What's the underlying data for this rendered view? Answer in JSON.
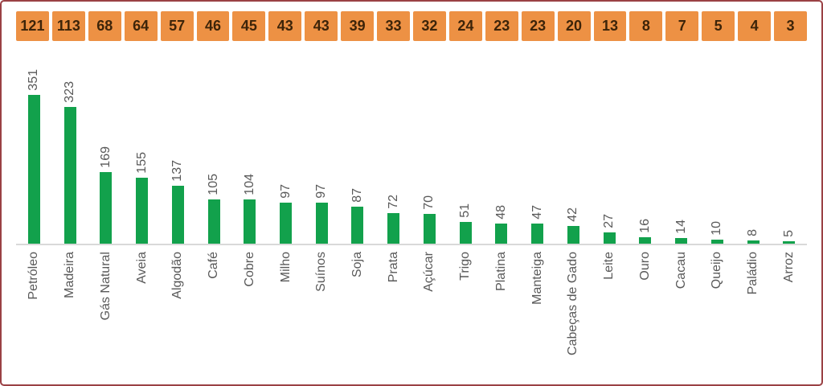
{
  "page": {
    "background_color": "#ffffff",
    "border_color": "#9a4145"
  },
  "header_strip": {
    "cell_color": "#ed9144",
    "text_color": "#3d2409"
  },
  "chart_data": {
    "type": "bar",
    "title": "",
    "xlabel": "",
    "ylabel": "",
    "categories": [
      "Petróleo",
      "Madeira",
      "Gás Natural",
      "Aveia",
      "Algodão",
      "Café",
      "Cobre",
      "Milho",
      "Suínos",
      "Soja",
      "Prata",
      "Açúcar",
      "Trigo",
      "Platina",
      "Manteiga",
      "Cabeças de Gado",
      "Leite",
      "Ouro",
      "Cacau",
      "Queijo",
      "Paládio",
      "Arroz"
    ],
    "series": [
      {
        "name": "bar-values",
        "display": "bars",
        "color": "#12a14c",
        "values": [
          351,
          323,
          169,
          155,
          137,
          105,
          104,
          97,
          97,
          87,
          72,
          70,
          51,
          48,
          47,
          42,
          27,
          16,
          14,
          10,
          8,
          5
        ]
      },
      {
        "name": "header-strip-values",
        "display": "header-strip",
        "color": "#ed9144",
        "values": [
          121,
          113,
          68,
          64,
          57,
          46,
          45,
          43,
          43,
          39,
          33,
          32,
          24,
          23,
          23,
          20,
          13,
          8,
          7,
          5,
          4,
          3
        ]
      }
    ],
    "ylim": [
      0,
      370
    ],
    "grid": false,
    "legend": false,
    "value_labels_rotated": true,
    "category_labels_rotated": true,
    "label_color": "#595959",
    "axis_line_color": "#d9d9d9"
  }
}
